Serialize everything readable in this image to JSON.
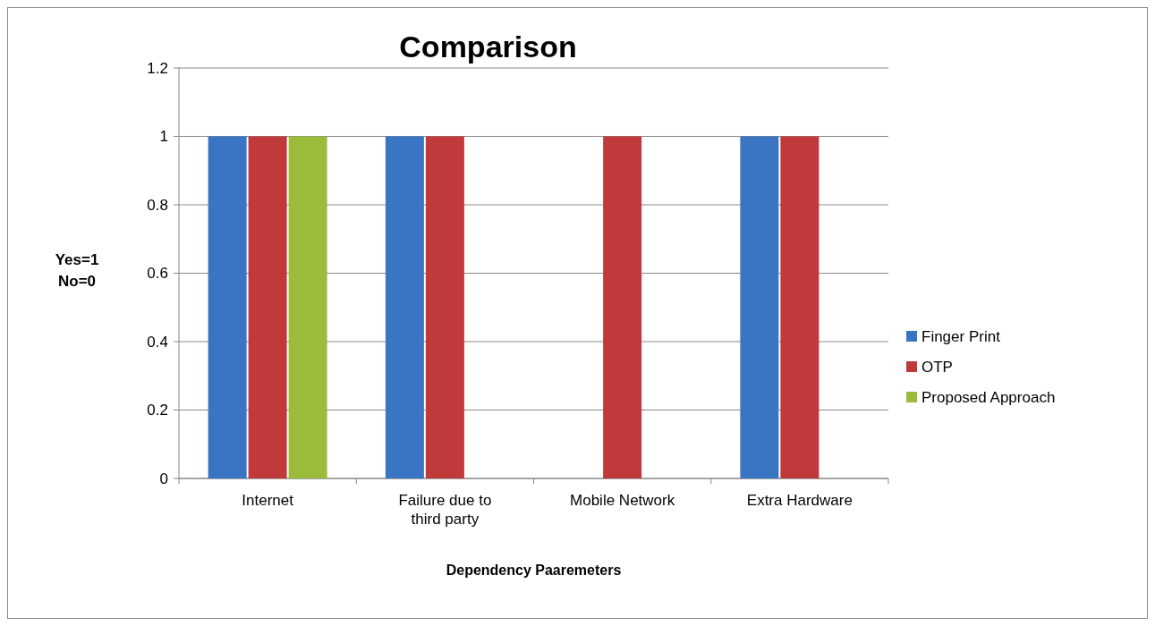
{
  "chart_data": {
    "type": "bar",
    "title": "Comparison",
    "xlabel": "Dependency Paaremeters",
    "ylabel": "Yes=1\nNo=0",
    "categories": [
      "Internet",
      "Failure due to third party",
      "Mobile Network",
      "Extra Hardware"
    ],
    "series": [
      {
        "name": "Finger Print",
        "color": "#3a75c4",
        "values": [
          1,
          1,
          0,
          1
        ]
      },
      {
        "name": "OTP",
        "color": "#c0393b",
        "values": [
          1,
          1,
          1,
          1
        ]
      },
      {
        "name": "Proposed Approach",
        "color": "#9bbb3a",
        "values": [
          1,
          0,
          0,
          0
        ]
      }
    ],
    "ylim": [
      0,
      1.2
    ],
    "yticks": [
      0,
      0.2,
      0.4,
      0.6,
      0.8,
      1,
      1.2
    ],
    "grid": "y",
    "legend": "right"
  }
}
